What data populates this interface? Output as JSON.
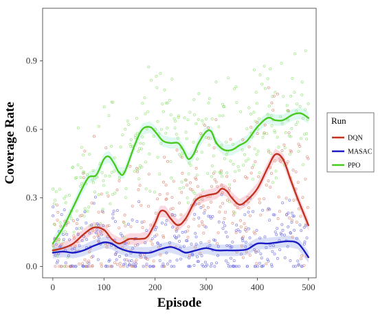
{
  "chart_data": {
    "type": "scatter",
    "title": "",
    "xlabel": "Episode",
    "ylabel": "Coverage Rate",
    "xlim": [
      -20,
      515
    ],
    "ylim": [
      -0.05,
      1.13
    ],
    "x_ticks": [
      0,
      100,
      200,
      300,
      400,
      500
    ],
    "x_tick_labels": [
      "0",
      "100",
      "200",
      "300",
      "400",
      "500"
    ],
    "y_ticks": [
      0.0,
      0.3,
      0.6,
      0.9
    ],
    "y_tick_labels": [
      "0.0",
      "0.3",
      "0.6",
      "0.9"
    ],
    "grid": false,
    "legend": {
      "title": "Run",
      "position": "right"
    },
    "series": [
      {
        "name": "DQN",
        "color": "#c0311f",
        "point_color": "#d9846f",
        "band_color": "#f6b8c4",
        "scatter_spread": 0.16,
        "smooth_x": [
          0,
          20,
          40,
          60,
          80,
          100,
          115,
          130,
          150,
          170,
          185,
          200,
          210,
          220,
          230,
          245,
          260,
          280,
          300,
          320,
          330,
          340,
          350,
          365,
          380,
          400,
          420,
          435,
          450,
          465,
          480,
          500
        ],
        "smooth_y": [
          0.07,
          0.08,
          0.1,
          0.14,
          0.17,
          0.16,
          0.12,
          0.1,
          0.12,
          0.12,
          0.13,
          0.19,
          0.24,
          0.24,
          0.21,
          0.18,
          0.21,
          0.29,
          0.31,
          0.32,
          0.34,
          0.33,
          0.3,
          0.27,
          0.29,
          0.34,
          0.43,
          0.49,
          0.47,
          0.38,
          0.29,
          0.18
        ]
      },
      {
        "name": "MASAC",
        "color": "#1b1bc4",
        "point_color": "#6b6be0",
        "band_color": "#b8c4f0",
        "scatter_spread": 0.1,
        "smooth_x": [
          0,
          20,
          40,
          60,
          80,
          100,
          115,
          130,
          150,
          170,
          190,
          210,
          230,
          245,
          260,
          280,
          300,
          320,
          340,
          360,
          380,
          400,
          420,
          440,
          460,
          480,
          500
        ],
        "smooth_y": [
          0.06,
          0.065,
          0.06,
          0.07,
          0.09,
          0.105,
          0.1,
          0.08,
          0.065,
          0.06,
          0.06,
          0.075,
          0.085,
          0.075,
          0.06,
          0.07,
          0.08,
          0.07,
          0.07,
          0.07,
          0.075,
          0.1,
          0.1,
          0.105,
          0.11,
          0.1,
          0.04
        ]
      },
      {
        "name": "PPO",
        "color": "#48c91d",
        "point_color": "#8fe070",
        "band_color": "#c4f2e8",
        "scatter_spread": 0.13,
        "smooth_x": [
          0,
          20,
          40,
          55,
          70,
          85,
          100,
          110,
          120,
          130,
          140,
          160,
          175,
          190,
          200,
          215,
          230,
          245,
          255,
          265,
          275,
          285,
          300,
          310,
          320,
          335,
          350,
          365,
          380,
          400,
          420,
          435,
          450,
          470,
          485,
          500
        ],
        "smooth_y": [
          0.1,
          0.17,
          0.26,
          0.33,
          0.39,
          0.4,
          0.47,
          0.48,
          0.45,
          0.41,
          0.41,
          0.53,
          0.6,
          0.61,
          0.59,
          0.55,
          0.54,
          0.54,
          0.51,
          0.47,
          0.49,
          0.54,
          0.59,
          0.59,
          0.54,
          0.51,
          0.51,
          0.53,
          0.55,
          0.61,
          0.65,
          0.64,
          0.64,
          0.665,
          0.67,
          0.65
        ]
      }
    ]
  }
}
